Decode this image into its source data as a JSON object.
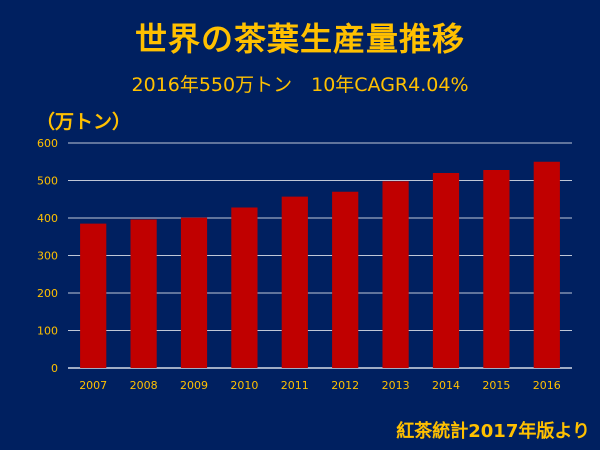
{
  "title": "世界の茶葉生産量推移",
  "subtitle": "2016年550万トン　10年CAGR4.04%",
  "source_note": "紅茶統計2017年版より",
  "colors": {
    "background": "#002060",
    "text": "#FFC000",
    "bar": "#C00000",
    "grid": "#FFFFFF"
  },
  "chart_data": {
    "type": "bar",
    "title": "世界の茶葉生産量推移",
    "xlabel": "",
    "ylabel": "（万トン）",
    "categories": [
      "2007",
      "2008",
      "2009",
      "2010",
      "2011",
      "2012",
      "2013",
      "2014",
      "2015",
      "2016"
    ],
    "values": [
      385,
      396,
      401,
      428,
      457,
      470,
      498,
      520,
      528,
      550
    ],
    "ylim": [
      0,
      600
    ],
    "yticks": [
      0,
      100,
      200,
      300,
      400,
      500,
      600
    ],
    "grid": true,
    "legend": "none"
  }
}
